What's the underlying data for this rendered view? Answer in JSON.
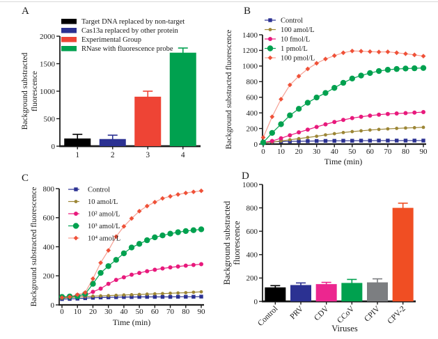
{
  "figure": {
    "background": "#ffffff",
    "axis_color": "#1c1c1c",
    "panels": [
      {
        "label": "A",
        "chart_data": {
          "type": "bar",
          "title": "",
          "ylabel": "Background substracted fluorescence",
          "ylabel_lines": [
            "Background substracted",
            "fluorescence"
          ],
          "ylim": [
            0,
            2000
          ],
          "yticks": [
            0,
            500,
            1000,
            1500,
            2000
          ],
          "categories": [
            "1",
            "2",
            "3",
            "4"
          ],
          "legend_position": "top-left",
          "grid": false,
          "bars": [
            {
              "category": "1",
              "value": 140,
              "error": 75,
              "color": "#000000",
              "legend": "Target DNA replaced by non-target"
            },
            {
              "category": "2",
              "value": 130,
              "error": 70,
              "color": "#2b3192",
              "legend": "Cas13a replaced by other protein"
            },
            {
              "category": "3",
              "value": 900,
              "error": 100,
              "color": "#ee4435",
              "legend": "Experimental Group"
            },
            {
              "category": "4",
              "value": 1700,
              "error": 85,
              "color": "#00a14f",
              "legend": "RNase with fluorescence probe"
            }
          ]
        }
      },
      {
        "label": "B",
        "chart_data": {
          "type": "line",
          "title": "",
          "xlabel": "Time (min)",
          "ylabel": "Background substracted fluorescence",
          "ylabel_lines": [
            "Background substracted fluorescence"
          ],
          "xlim": [
            0,
            90
          ],
          "xticks": [
            0,
            10,
            20,
            30,
            40,
            50,
            60,
            70,
            80,
            90
          ],
          "ylim": [
            0,
            1400
          ],
          "yticks": [
            0,
            200,
            400,
            600,
            800,
            1000,
            1200,
            1400
          ],
          "legend_position": "top-left",
          "grid": false,
          "x": [
            0,
            5,
            10,
            15,
            20,
            25,
            30,
            35,
            40,
            45,
            50,
            55,
            60,
            65,
            70,
            75,
            80,
            85,
            90
          ],
          "series": [
            {
              "name": "Control",
              "color": "#2b3192",
              "marker": "square",
              "light_line": false,
              "values": [
                20,
                30,
                33,
                35,
                36,
                38,
                40,
                41,
                42,
                43,
                43,
                44,
                44,
                45,
                45,
                45,
                45,
                45,
                45
              ]
            },
            {
              "name": "100 amol/L",
              "color": "#9c8636",
              "marker": "circle-small",
              "light_line": false,
              "values": [
                15,
                25,
                40,
                55,
                70,
                85,
                100,
                118,
                133,
                148,
                160,
                170,
                180,
                188,
                195,
                201,
                206,
                210,
                215
              ]
            },
            {
              "name": "10 fmol/L",
              "color": "#e8197c",
              "marker": "circle",
              "light_line": false,
              "values": [
                20,
                40,
                75,
                113,
                150,
                185,
                220,
                253,
                283,
                310,
                333,
                350,
                365,
                377,
                386,
                392,
                397,
                403,
                410
              ]
            },
            {
              "name": "1 pmol/L",
              "color": "#00a14f",
              "marker": "circle-large",
              "light_line": false,
              "values": [
                20,
                143,
                255,
                368,
                452,
                530,
                597,
                655,
                720,
                785,
                840,
                878,
                910,
                936,
                952,
                962,
                968,
                971,
                975
              ]
            },
            {
              "name": "100 pmol/L",
              "color": "#ef5138",
              "marker": "diamond",
              "light_line": true,
              "values": [
                85,
                350,
                575,
                758,
                870,
                963,
                1035,
                1090,
                1133,
                1170,
                1193,
                1190,
                1185,
                1180,
                1182,
                1170,
                1157,
                1143,
                1127
              ]
            }
          ]
        }
      },
      {
        "label": "C",
        "chart_data": {
          "type": "line",
          "title": "",
          "xlabel": "Time (min)",
          "ylabel": "Background substracted fluorescence",
          "ylabel_lines": [
            "Background substracted fluorescence"
          ],
          "xlim": [
            0,
            90
          ],
          "xticks": [
            0,
            10,
            20,
            30,
            40,
            50,
            60,
            70,
            80,
            90
          ],
          "ylim": [
            0,
            800
          ],
          "yticks": [
            0,
            200,
            400,
            600,
            800
          ],
          "legend_position": "top-left",
          "grid": false,
          "x": [
            0,
            5,
            10,
            15,
            20,
            25,
            30,
            35,
            40,
            45,
            50,
            55,
            60,
            65,
            70,
            75,
            80,
            85,
            90
          ],
          "series": [
            {
              "name": "Control",
              "color": "#2b3192",
              "marker": "square",
              "light_line": false,
              "values": [
                40,
                41,
                43,
                46,
                49,
                51,
                52,
                53,
                54,
                54,
                55,
                55,
                55,
                55,
                55,
                56,
                56,
                56,
                57
              ]
            },
            {
              "name": "10 amol/L",
              "color": "#9c8636",
              "marker": "circle-small",
              "light_line": false,
              "values": [
                48,
                51,
                54,
                57,
                60,
                62,
                64,
                66,
                68,
                70,
                72,
                74,
                76,
                78,
                80,
                82,
                84,
                87,
                90
              ]
            },
            {
              "name": "10² amol/L",
              "color": "#e8197c",
              "marker": "circle",
              "light_line": false,
              "values": [
                50,
                55,
                68,
                65,
                90,
                112,
                145,
                172,
                190,
                208,
                220,
                232,
                242,
                251,
                258,
                264,
                270,
                275,
                280
              ]
            },
            {
              "name": "10³ amol/L",
              "color": "#00a14f",
              "marker": "circle-large",
              "light_line": false,
              "values": [
                55,
                58,
                60,
                75,
                145,
                220,
                267,
                310,
                355,
                395,
                420,
                445,
                465,
                478,
                490,
                500,
                508,
                514,
                520
              ]
            },
            {
              "name": "10⁴ amol/L",
              "color": "#ef5138",
              "marker": "diamond",
              "light_line": true,
              "values": [
                50,
                55,
                70,
                85,
                180,
                290,
                375,
                470,
                540,
                595,
                645,
                680,
                707,
                733,
                747,
                760,
                770,
                778,
                785
              ]
            }
          ]
        }
      },
      {
        "label": "D",
        "chart_data": {
          "type": "bar",
          "title": "",
          "xlabel": "Viruses",
          "ylabel": "Background substracted fluorescence",
          "ylabel_lines": [
            "Background substracted",
            "fluorescence"
          ],
          "ylim": [
            0,
            1000
          ],
          "yticks": [
            0,
            200,
            400,
            600,
            800,
            1000
          ],
          "categories": [
            "Control",
            "PRV",
            "CDV",
            "CCoV",
            "CPIV",
            "CPV-2"
          ],
          "rotated_labels": true,
          "grid": false,
          "bars": [
            {
              "category": "Control",
              "value": 120,
              "error": 15,
              "color": "#000000"
            },
            {
              "category": "PRV",
              "value": 140,
              "error": 18,
              "color": "#2b3192"
            },
            {
              "category": "CDV",
              "value": 148,
              "error": 15,
              "color": "#ec268f"
            },
            {
              "category": "CCoV",
              "value": 158,
              "error": 30,
              "color": "#00a14f"
            },
            {
              "category": "CPIV",
              "value": 163,
              "error": 30,
              "color": "#7c7e81"
            },
            {
              "category": "CPV-2",
              "value": 800,
              "error": 40,
              "color": "#f04e23"
            }
          ]
        }
      }
    ]
  }
}
